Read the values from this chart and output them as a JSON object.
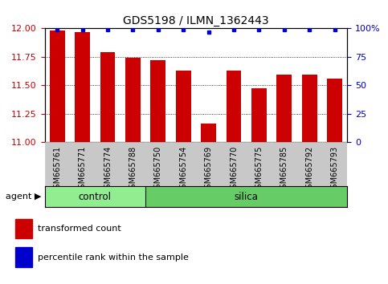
{
  "title": "GDS5198 / ILMN_1362443",
  "samples": [
    "GSM665761",
    "GSM665771",
    "GSM665774",
    "GSM665788",
    "GSM665750",
    "GSM665754",
    "GSM665769",
    "GSM665770",
    "GSM665775",
    "GSM665785",
    "GSM665792",
    "GSM665793"
  ],
  "groups": [
    "control",
    "control",
    "control",
    "control",
    "silica",
    "silica",
    "silica",
    "silica",
    "silica",
    "silica",
    "silica",
    "silica"
  ],
  "transformed_count": [
    11.98,
    11.97,
    11.79,
    11.74,
    11.72,
    11.63,
    11.16,
    11.63,
    11.47,
    11.59,
    11.59,
    11.56
  ],
  "percentile_rank": [
    99,
    99,
    99,
    99,
    99,
    99,
    97,
    99,
    99,
    99,
    99,
    99
  ],
  "ylim_left": [
    11.0,
    12.0
  ],
  "ylim_right": [
    0,
    100
  ],
  "yticks_left": [
    11.0,
    11.25,
    11.5,
    11.75,
    12.0
  ],
  "yticks_right": [
    0,
    25,
    50,
    75,
    100
  ],
  "bar_color": "#cc0000",
  "dot_color": "#0000cc",
  "control_color": "#90ee90",
  "silica_color": "#66cc66",
  "legend_items": [
    "transformed count",
    "percentile rank within the sample"
  ],
  "legend_colors": [
    "#cc0000",
    "#0000cc"
  ],
  "bar_width": 0.6,
  "n_control": 4,
  "n_silica": 8,
  "tick_bg_color": "#c8c8c8",
  "grid_color": "#000000",
  "right_tick_labels": [
    "0",
    "25",
    "50",
    "75",
    "100%"
  ]
}
